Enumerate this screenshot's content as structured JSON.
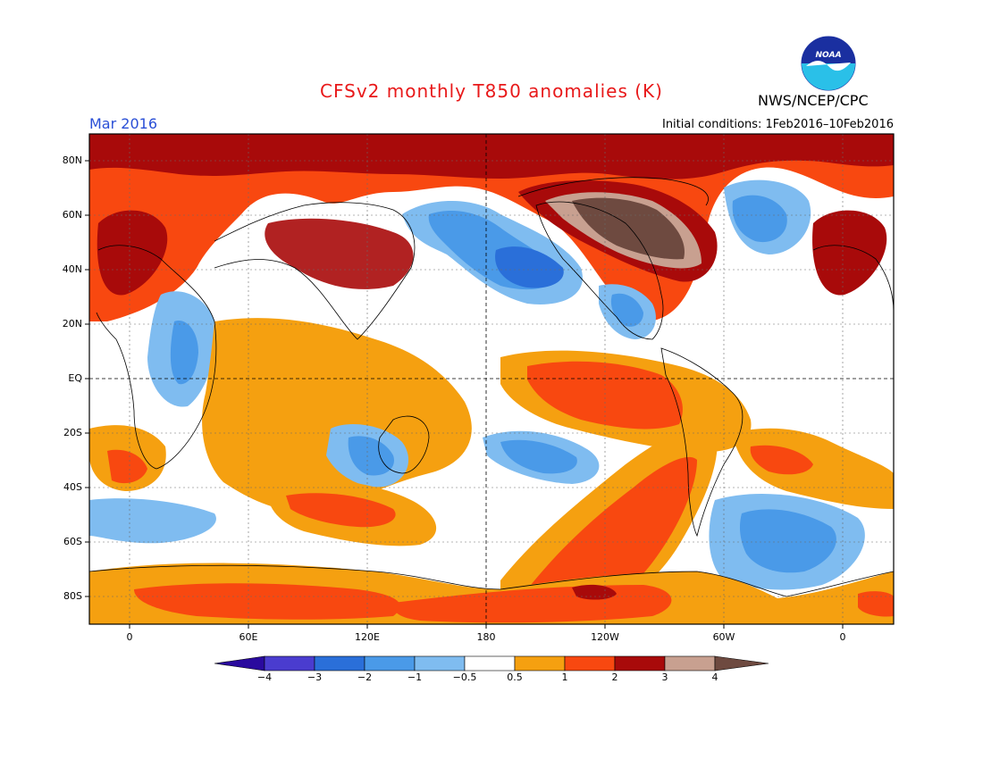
{
  "title": "CFSv2 monthly T850 anomalies (K)",
  "valid_month": "Mar 2016",
  "initial_conditions": "Initial conditions: 1Feb2016–10Feb2016",
  "agency": "NWS/NCEP/CPC",
  "logo_text": "NOAA",
  "lat_labels": [
    "80N",
    "60N",
    "40N",
    "20N",
    "EQ",
    "20S",
    "40S",
    "60S",
    "80S"
  ],
  "lon_labels": [
    "0",
    "60E",
    "120E",
    "180",
    "120W",
    "60W",
    "0"
  ],
  "colorbar": {
    "labels": [
      "−4",
      "−3",
      "−2",
      "−1",
      "−0.5",
      "0.5",
      "1",
      "2",
      "3",
      "4"
    ],
    "colors": [
      "#2a0a9e",
      "#4a3ccf",
      "#2a6fd9",
      "#4a9ae8",
      "#7fbcf0",
      "#ffffff",
      "#f5a010",
      "#f84810",
      "#a80a0a",
      "#c8a090",
      "#6e4a40"
    ]
  },
  "palette": {
    "warm1": "#f5a010",
    "warm2": "#f84810",
    "warm3": "#a80a0a",
    "warm4": "#c8a090",
    "warm5": "#6e4a40",
    "cool1": "#7fbcf0",
    "cool2": "#4a9ae8",
    "cool3": "#2a6fd9"
  }
}
